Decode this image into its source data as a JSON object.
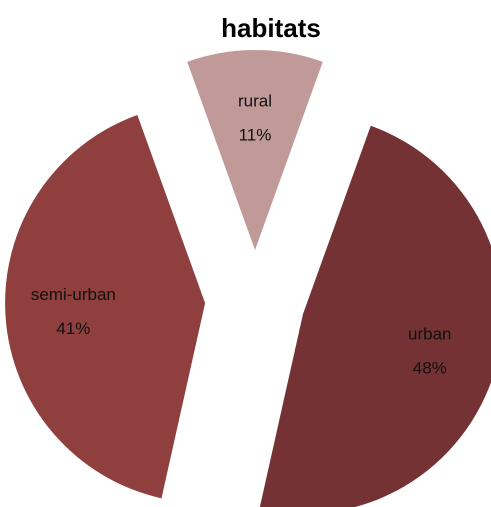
{
  "chart_data": {
    "type": "pie",
    "title": "habitats",
    "categories": [
      "rural",
      "urban",
      "semi-urban"
    ],
    "values": [
      11,
      48,
      41
    ],
    "value_labels": [
      "11%",
      "48%",
      "41%"
    ],
    "colors": [
      "#c09a98",
      "#743234",
      "#8e3f3e"
    ],
    "exploded": true
  }
}
